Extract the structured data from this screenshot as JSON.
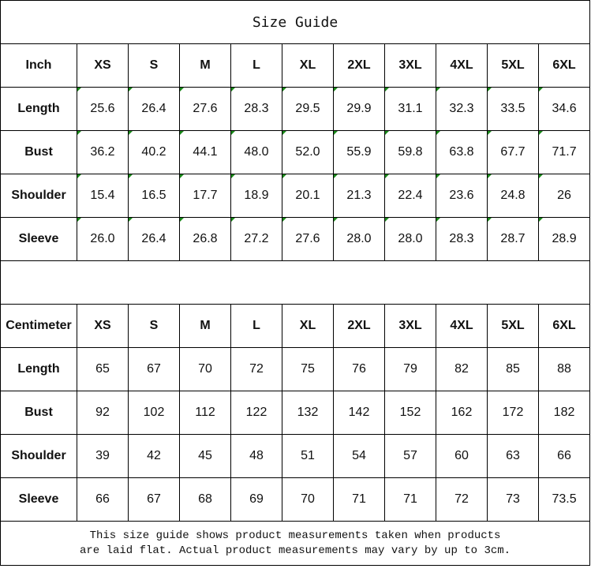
{
  "title": "Size Guide",
  "sizes": [
    "XS",
    "S",
    "M",
    "L",
    "XL",
    "2XL",
    "3XL",
    "4XL",
    "5XL",
    "6XL"
  ],
  "inch": {
    "unit_label": "Inch",
    "rows": [
      {
        "label": "Length",
        "values": [
          "25.6",
          "26.4",
          "27.6",
          "28.3",
          "29.5",
          "29.9",
          "31.1",
          "32.3",
          "33.5",
          "34.6"
        ]
      },
      {
        "label": "Bust",
        "values": [
          "36.2",
          "40.2",
          "44.1",
          "48.0",
          "52.0",
          "55.9",
          "59.8",
          "63.8",
          "67.7",
          "71.7"
        ]
      },
      {
        "label": "Shoulder",
        "values": [
          "15.4",
          "16.5",
          "17.7",
          "18.9",
          "20.1",
          "21.3",
          "22.4",
          "23.6",
          "24.8",
          "26"
        ]
      },
      {
        "label": "Sleeve",
        "values": [
          "26.0",
          "26.4",
          "26.8",
          "27.2",
          "27.6",
          "28.0",
          "28.0",
          "28.3",
          "28.7",
          "28.9"
        ]
      }
    ]
  },
  "centimeter": {
    "unit_label": "Centimeter",
    "rows": [
      {
        "label": "Length",
        "values": [
          "65",
          "67",
          "70",
          "72",
          "75",
          "76",
          "79",
          "82",
          "85",
          "88"
        ]
      },
      {
        "label": "Bust",
        "values": [
          "92",
          "102",
          "112",
          "122",
          "132",
          "142",
          "152",
          "162",
          "172",
          "182"
        ]
      },
      {
        "label": "Shoulder",
        "values": [
          "39",
          "42",
          "45",
          "48",
          "51",
          "54",
          "57",
          "60",
          "63",
          "66"
        ]
      },
      {
        "label": "Sleeve",
        "values": [
          "66",
          "67",
          "68",
          "69",
          "70",
          "71",
          "71",
          "72",
          "73",
          "73.5"
        ]
      }
    ]
  },
  "note_line1": "This size guide shows product measurements taken when products",
  "note_line2": "are laid flat. Actual product measurements may vary by up to 3cm.",
  "colors": {
    "border": "#000000",
    "text_number_flag": "#1a8a1a"
  }
}
